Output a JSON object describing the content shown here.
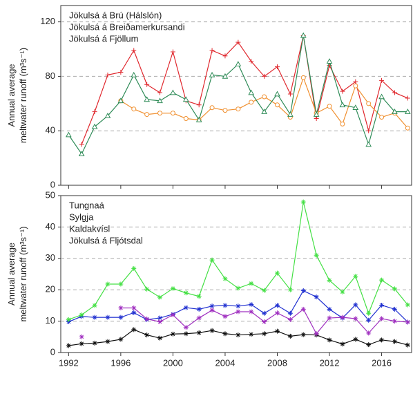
{
  "chart_data": [
    {
      "type": "line",
      "ylabel": [
        "Annual average",
        "meltwater runoff (m³s⁻¹)"
      ],
      "x": [
        1992,
        1993,
        1994,
        1995,
        1996,
        1997,
        1998,
        1999,
        2000,
        2001,
        2002,
        2003,
        2004,
        2005,
        2006,
        2007,
        2008,
        2009,
        2010,
        2011,
        2012,
        2013,
        2014,
        2015,
        2016,
        2017,
        2018
      ],
      "xlim": [
        1991.4,
        2018.3
      ],
      "ylim": [
        0,
        132
      ],
      "yticks": [
        0,
        40,
        80,
        120
      ],
      "grid": true,
      "legend": "upper left",
      "series": [
        {
          "name": "Jökulsá á Brú (Hálslón)",
          "color": "#e0282e",
          "marker": "plus",
          "values": [
            null,
            30,
            54,
            81,
            83,
            99,
            74,
            68,
            98,
            62,
            59,
            99,
            95,
            105,
            91,
            80,
            87,
            67,
            110,
            49,
            88,
            69,
            76,
            40,
            77,
            68,
            64
          ]
        },
        {
          "name": "Jökulsá á Breiðamerkursandi",
          "color": "#f09030",
          "marker": "circle",
          "values": [
            null,
            null,
            null,
            null,
            62,
            56,
            52,
            53,
            53,
            49,
            48,
            57,
            55,
            56,
            61,
            65,
            59,
            50,
            79,
            53,
            58,
            45,
            73,
            60,
            50,
            53,
            42
          ]
        },
        {
          "name": "Jökulsá á Fjöllum",
          "color": "#2e8b57",
          "marker": "triangle",
          "values": [
            37,
            23,
            43,
            51,
            62,
            81,
            63,
            62,
            68,
            63,
            48,
            81,
            80,
            89,
            68,
            54,
            67,
            52,
            110,
            52,
            91,
            59,
            57,
            30,
            65,
            54,
            54
          ]
        }
      ]
    },
    {
      "type": "line",
      "ylabel": [
        "Annual average",
        "meltwater runoff (m³s⁻¹)"
      ],
      "x": [
        1992,
        1993,
        1994,
        1995,
        1996,
        1997,
        1998,
        1999,
        2000,
        2001,
        2002,
        2003,
        2004,
        2005,
        2006,
        2007,
        2008,
        2009,
        2010,
        2011,
        2012,
        2013,
        2014,
        2015,
        2016,
        2017,
        2018
      ],
      "xlim": [
        1991.4,
        2018.3
      ],
      "xticks": [
        1992,
        1996,
        2000,
        2004,
        2008,
        2012,
        2016
      ],
      "ylim": [
        0,
        50
      ],
      "yticks": [
        0,
        10,
        20,
        30,
        40,
        50
      ],
      "grid": true,
      "legend": "upper left",
      "series": [
        {
          "name": "Tungnaá",
          "color": "#1f2fd0",
          "marker": "asterisk",
          "values": [
            9.8,
            11.5,
            11.2,
            11.2,
            11.2,
            12.7,
            10.5,
            11,
            12.2,
            14.3,
            13.8,
            14.8,
            15,
            14.8,
            15.3,
            12.5,
            15,
            12.5,
            19.7,
            17.7,
            13.8,
            11,
            15.2,
            10.3,
            15.1,
            13.8,
            9.7
          ]
        },
        {
          "name": "Sylgja",
          "color": "#111111",
          "marker": "asterisk",
          "values": [
            2.2,
            2.8,
            3,
            3.5,
            4.2,
            7.3,
            5.6,
            4.6,
            5.9,
            6,
            6.3,
            7,
            6,
            5.6,
            5.8,
            6,
            6.8,
            5.2,
            5.7,
            5.6,
            4,
            2.7,
            4.2,
            2.5,
            4,
            3.5,
            2.4
          ]
        },
        {
          "name": "Kaldakvísl",
          "color": "#44e044",
          "marker": "asterisk",
          "values": [
            10.5,
            12,
            15,
            21.8,
            21.8,
            26.8,
            20.2,
            17.6,
            20.4,
            19,
            17.9,
            29.5,
            23.5,
            20.5,
            22,
            19.8,
            25.3,
            20,
            48,
            31,
            23,
            19.3,
            24.3,
            12.5,
            23.1,
            20.3,
            15.2
          ]
        },
        {
          "name": "Jökulsá á Fljótsdal",
          "color": "#a030c0",
          "marker": "asterisk",
          "values": [
            null,
            5,
            null,
            null,
            14.2,
            14.2,
            10.7,
            9.8,
            12,
            8,
            11,
            13.5,
            11.5,
            13,
            13,
            9.8,
            12.6,
            10.5,
            13.8,
            6,
            11,
            11.2,
            10.8,
            6.2,
            10.8,
            10,
            9.7
          ]
        }
      ]
    }
  ]
}
